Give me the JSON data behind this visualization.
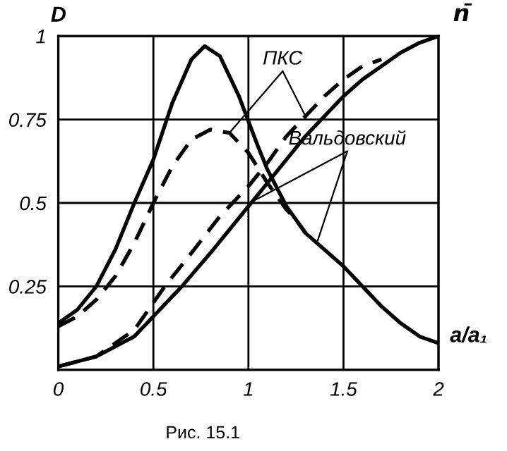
{
  "chart_data": {
    "type": "line",
    "xlabel": "a/a₁",
    "ylabel": "D",
    "y2label": "n̄",
    "annotations": [
      "Рис. 15.1"
    ],
    "series": [
      {
        "name": "Вальдовский",
        "color": "#000000",
        "line_style": "solid",
        "x": [
          0,
          0.1,
          0.2,
          0.3,
          0.4,
          0.5,
          0.6,
          0.7,
          0.77,
          0.85,
          0.95,
          1.05,
          1.1,
          1.2,
          1.3,
          1.4,
          1.5,
          1.6,
          1.7,
          1.8,
          1.9,
          2.0
        ],
        "values": [
          0.14,
          0.18,
          0.25,
          0.36,
          0.5,
          0.63,
          0.8,
          0.93,
          0.97,
          0.94,
          0.82,
          0.67,
          0.6,
          0.49,
          0.41,
          0.36,
          0.31,
          0.25,
          0.19,
          0.14,
          0.1,
          0.08
        ]
      },
      {
        "name": "ПКС",
        "color": "#000000",
        "line_style": "dashed",
        "x": [
          0,
          0.1,
          0.2,
          0.3,
          0.4,
          0.5,
          0.6,
          0.7,
          0.8,
          0.9,
          1.0,
          1.1,
          1.2,
          1.25,
          1.3
        ],
        "values": [
          0.13,
          0.16,
          0.21,
          0.28,
          0.38,
          0.5,
          0.61,
          0.69,
          0.72,
          0.71,
          0.65,
          0.56,
          0.48,
          0.45,
          0.41
        ]
      },
      {
        "color": "#000000",
        "line_style": "solid",
        "x": [
          0,
          0.2,
          0.4,
          0.5,
          0.65,
          0.8,
          1.0,
          1.1,
          1.2,
          1.3,
          1.4,
          1.5,
          1.6,
          1.7,
          1.8,
          1.9,
          2.0
        ],
        "values": [
          0.01,
          0.04,
          0.1,
          0.16,
          0.25,
          0.35,
          0.49,
          0.56,
          0.63,
          0.7,
          0.76,
          0.82,
          0.87,
          0.91,
          0.95,
          0.98,
          1.0
        ]
      },
      {
        "color": "#000000",
        "line_style": "dashed",
        "x": [
          0,
          0.2,
          0.4,
          0.56,
          0.7,
          0.85,
          1.0,
          1.1,
          1.2,
          1.3,
          1.4,
          1.5,
          1.6,
          1.7
        ],
        "values": [
          0.01,
          0.04,
          0.12,
          0.25,
          0.35,
          0.46,
          0.55,
          0.62,
          0.7,
          0.76,
          0.82,
          0.87,
          0.91,
          0.93
        ]
      }
    ],
    "xlim": [
      0,
      2
    ],
    "ylim": [
      0,
      1
    ],
    "xticks": [
      0,
      0.5,
      1,
      1.5,
      2
    ],
    "yticks": [
      {
        "value": 0,
        "label": null
      },
      0.25,
      0.5,
      0.75,
      1
    ],
    "grid": true
  }
}
